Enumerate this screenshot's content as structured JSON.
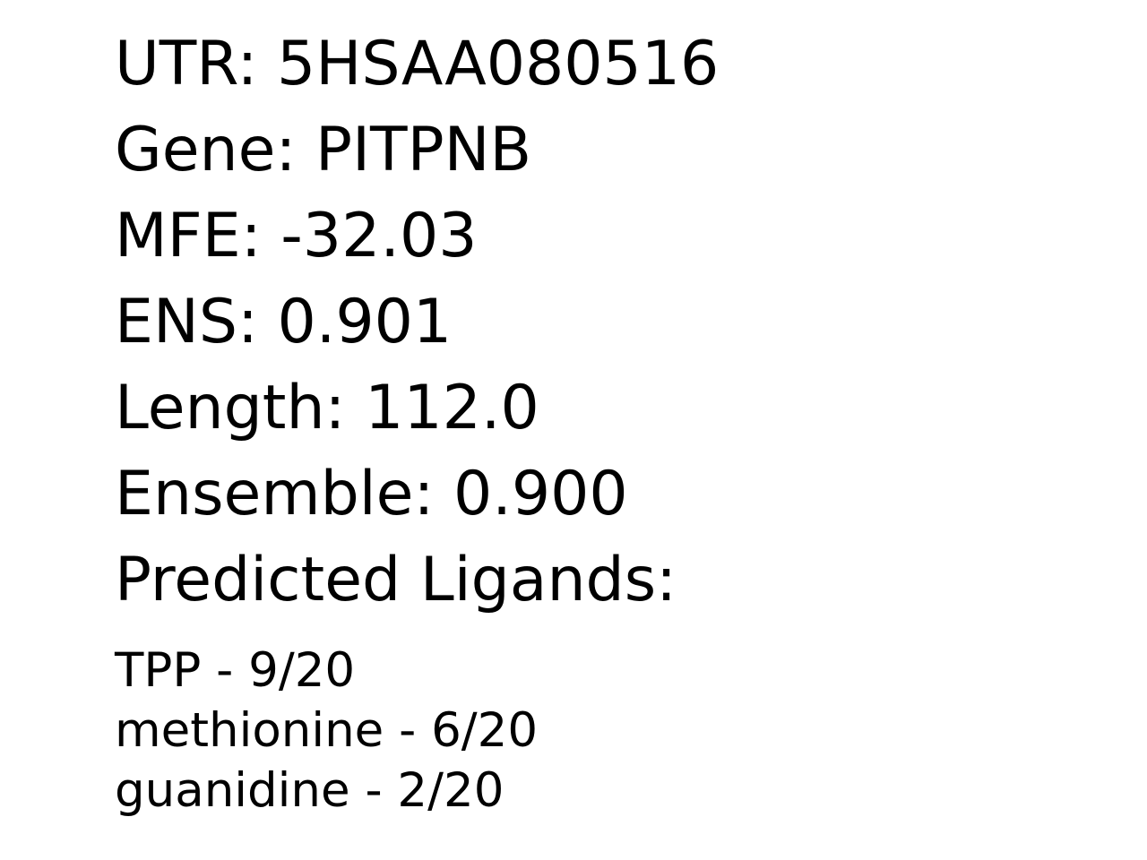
{
  "record": {
    "utr": "UTR: 5HSAA080516",
    "gene": "Gene: PITPNB",
    "mfe": "MFE: -32.03",
    "ens": "ENS: 0.901",
    "length": "Length: 112.0",
    "ensemble": "Ensemble: 0.900",
    "ligands_heading": "Predicted Ligands:"
  },
  "ligands": [
    "TPP - 9/20",
    "methionine - 6/20",
    "guanidine - 2/20"
  ]
}
